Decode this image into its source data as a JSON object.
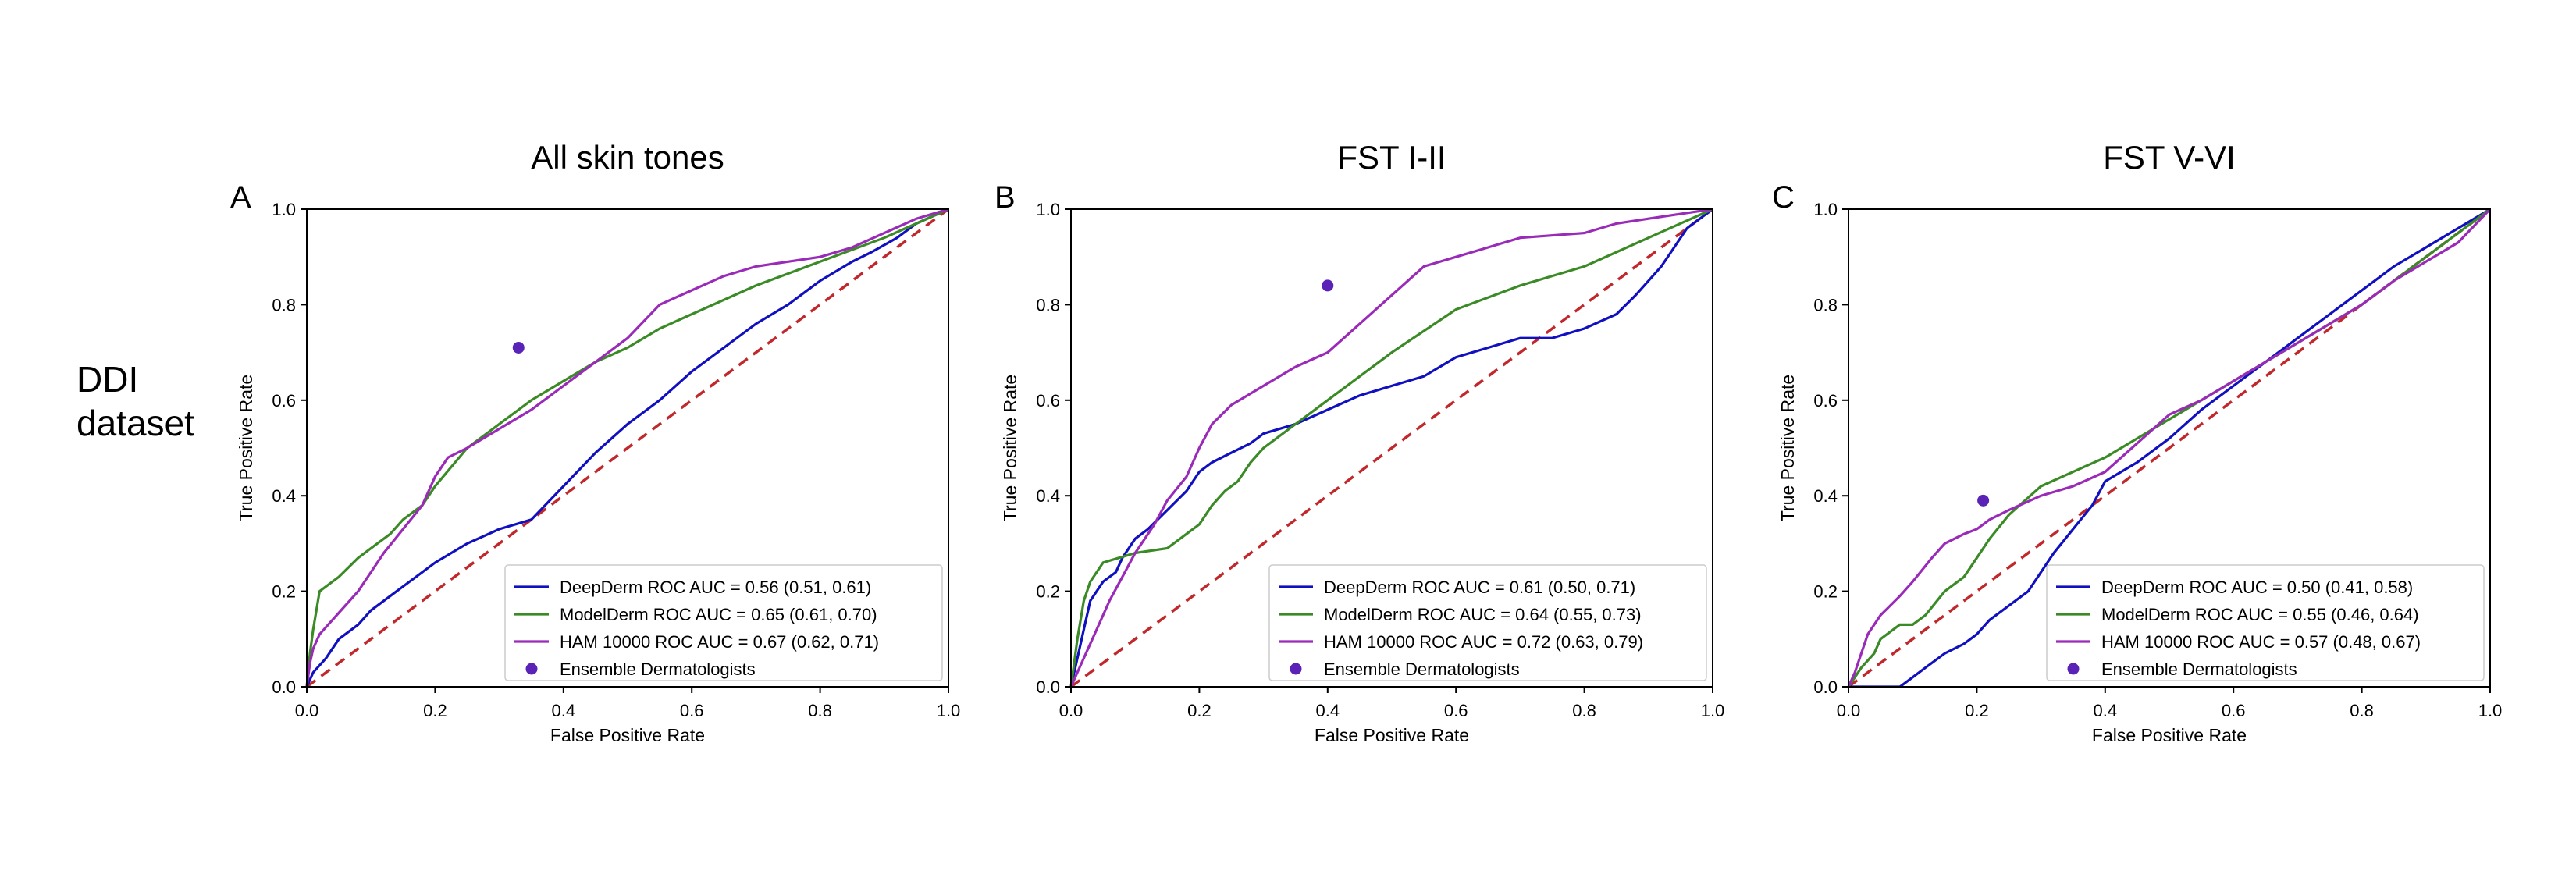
{
  "row_label_lines": [
    "DDI",
    "dataset"
  ],
  "colors": {
    "deepderm": "#1010c0",
    "modelderm": "#3a8a26",
    "ham": "#9a2ab8",
    "ensemble": "#5a22b6",
    "diagonal": "#c0282c"
  },
  "chart_data": [
    {
      "type": "line",
      "panel_letter": "A",
      "title": "All skin tones",
      "xlabel": "False Positive Rate",
      "ylabel": "True Positive Rate",
      "xlim": [
        0,
        1
      ],
      "ylim": [
        0,
        1
      ],
      "xticks": [
        "0.0",
        "0.2",
        "0.4",
        "0.6",
        "0.8",
        "1.0"
      ],
      "yticks": [
        "0.0",
        "0.2",
        "0.4",
        "0.6",
        "0.8",
        "1.0"
      ],
      "legend_position": "lower-right",
      "diagonal": true,
      "series": [
        {
          "name": "DeepDerm ROC AUC = 0.56 (0.51, 0.61)",
          "color_key": "deepderm",
          "x": [
            0,
            0.01,
            0.03,
            0.05,
            0.08,
            0.1,
            0.13,
            0.15,
            0.18,
            0.2,
            0.25,
            0.3,
            0.35,
            0.4,
            0.45,
            0.5,
            0.55,
            0.6,
            0.65,
            0.7,
            0.75,
            0.8,
            0.85,
            0.88,
            0.92,
            0.95,
            1.0
          ],
          "y": [
            0,
            0.03,
            0.06,
            0.1,
            0.13,
            0.16,
            0.19,
            0.21,
            0.24,
            0.26,
            0.3,
            0.33,
            0.35,
            0.42,
            0.49,
            0.55,
            0.6,
            0.66,
            0.71,
            0.76,
            0.8,
            0.85,
            0.89,
            0.91,
            0.94,
            0.97,
            1.0
          ]
        },
        {
          "name": "ModelDerm ROC AUC = 0.65 (0.61, 0.70)",
          "color_key": "modelderm",
          "x": [
            0,
            0.005,
            0.01,
            0.02,
            0.05,
            0.08,
            0.1,
            0.13,
            0.15,
            0.18,
            0.2,
            0.25,
            0.3,
            0.35,
            0.4,
            0.45,
            0.5,
            0.55,
            0.6,
            0.7,
            0.8,
            0.9,
            1.0
          ],
          "y": [
            0,
            0.07,
            0.12,
            0.2,
            0.23,
            0.27,
            0.29,
            0.32,
            0.35,
            0.38,
            0.42,
            0.5,
            0.55,
            0.6,
            0.64,
            0.68,
            0.71,
            0.75,
            0.78,
            0.84,
            0.89,
            0.94,
            1.0
          ]
        },
        {
          "name": "HAM 10000 ROC AUC = 0.67 (0.62, 0.71)",
          "color_key": "ham",
          "x": [
            0,
            0.005,
            0.01,
            0.02,
            0.04,
            0.06,
            0.08,
            0.1,
            0.12,
            0.15,
            0.18,
            0.2,
            0.22,
            0.25,
            0.3,
            0.35,
            0.4,
            0.45,
            0.5,
            0.55,
            0.6,
            0.65,
            0.7,
            0.75,
            0.8,
            0.85,
            0.9,
            0.95,
            1.0
          ],
          "y": [
            0,
            0.05,
            0.08,
            0.11,
            0.14,
            0.17,
            0.2,
            0.24,
            0.28,
            0.33,
            0.38,
            0.44,
            0.48,
            0.5,
            0.54,
            0.58,
            0.63,
            0.68,
            0.73,
            0.8,
            0.83,
            0.86,
            0.88,
            0.89,
            0.9,
            0.92,
            0.95,
            0.98,
            1.0
          ]
        }
      ],
      "ensemble": {
        "name": "Ensemble Dermatologists",
        "x": 0.33,
        "y": 0.71
      }
    },
    {
      "type": "line",
      "panel_letter": "B",
      "title": "FST I-II",
      "xlabel": "False Positive Rate",
      "ylabel": "True Positive Rate",
      "xlim": [
        0,
        1
      ],
      "ylim": [
        0,
        1
      ],
      "xticks": [
        "0.0",
        "0.2",
        "0.4",
        "0.6",
        "0.8",
        "1.0"
      ],
      "yticks": [
        "0.0",
        "0.2",
        "0.4",
        "0.6",
        "0.8",
        "1.0"
      ],
      "legend_position": "lower-right",
      "diagonal": true,
      "series": [
        {
          "name": "DeepDerm ROC AUC = 0.61 (0.50, 0.71)",
          "color_key": "deepderm",
          "x": [
            0,
            0.01,
            0.02,
            0.03,
            0.05,
            0.07,
            0.08,
            0.1,
            0.12,
            0.15,
            0.18,
            0.2,
            0.22,
            0.25,
            0.28,
            0.3,
            0.35,
            0.4,
            0.45,
            0.5,
            0.55,
            0.6,
            0.65,
            0.7,
            0.75,
            0.8,
            0.85,
            0.88,
            0.9,
            0.92,
            0.94,
            0.96,
            1.0
          ],
          "y": [
            0,
            0.06,
            0.12,
            0.18,
            0.22,
            0.24,
            0.27,
            0.31,
            0.33,
            0.37,
            0.41,
            0.45,
            0.47,
            0.49,
            0.51,
            0.53,
            0.55,
            0.58,
            0.61,
            0.63,
            0.65,
            0.69,
            0.71,
            0.73,
            0.73,
            0.75,
            0.78,
            0.82,
            0.85,
            0.88,
            0.92,
            0.96,
            1.0
          ]
        },
        {
          "name": "ModelDerm ROC AUC = 0.64 (0.55, 0.73)",
          "color_key": "modelderm",
          "x": [
            0,
            0.01,
            0.02,
            0.03,
            0.05,
            0.1,
            0.15,
            0.2,
            0.22,
            0.24,
            0.26,
            0.28,
            0.3,
            0.35,
            0.4,
            0.5,
            0.6,
            0.7,
            0.8,
            0.9,
            1.0
          ],
          "y": [
            0,
            0.1,
            0.18,
            0.22,
            0.26,
            0.28,
            0.29,
            0.34,
            0.38,
            0.41,
            0.43,
            0.47,
            0.5,
            0.55,
            0.6,
            0.7,
            0.79,
            0.84,
            0.88,
            0.94,
            1.0
          ]
        },
        {
          "name": "HAM 10000 ROC AUC = 0.72 (0.63, 0.79)",
          "color_key": "ham",
          "x": [
            0,
            0.01,
            0.02,
            0.04,
            0.06,
            0.08,
            0.1,
            0.13,
            0.15,
            0.18,
            0.2,
            0.22,
            0.25,
            0.3,
            0.35,
            0.4,
            0.45,
            0.5,
            0.55,
            0.6,
            0.65,
            0.7,
            0.8,
            0.85,
            0.9,
            0.95,
            1.0
          ],
          "y": [
            0,
            0.03,
            0.06,
            0.12,
            0.18,
            0.23,
            0.28,
            0.34,
            0.39,
            0.44,
            0.5,
            0.55,
            0.59,
            0.63,
            0.67,
            0.7,
            0.76,
            0.82,
            0.88,
            0.9,
            0.92,
            0.94,
            0.95,
            0.97,
            0.98,
            0.99,
            1.0
          ]
        }
      ],
      "ensemble": {
        "name": "Ensemble Dermatologists",
        "x": 0.4,
        "y": 0.84
      }
    },
    {
      "type": "line",
      "panel_letter": "C",
      "title": "FST V-VI",
      "xlabel": "False Positive Rate",
      "ylabel": "True Positive Rate",
      "xlim": [
        0,
        1
      ],
      "ylim": [
        0,
        1
      ],
      "xticks": [
        "0.0",
        "0.2",
        "0.4",
        "0.6",
        "0.8",
        "1.0"
      ],
      "yticks": [
        "0.0",
        "0.2",
        "0.4",
        "0.6",
        "0.8",
        "1.0"
      ],
      "legend_position": "lower-right",
      "diagonal": true,
      "series": [
        {
          "name": "DeepDerm ROC AUC = 0.50 (0.41, 0.58)",
          "color_key": "deepderm",
          "x": [
            0,
            0.05,
            0.08,
            0.1,
            0.12,
            0.15,
            0.18,
            0.2,
            0.22,
            0.25,
            0.28,
            0.3,
            0.32,
            0.35,
            0.38,
            0.4,
            0.45,
            0.5,
            0.55,
            0.6,
            0.65,
            0.7,
            0.75,
            0.8,
            0.85,
            0.9,
            0.95,
            1.0
          ],
          "y": [
            0,
            0,
            0,
            0.02,
            0.04,
            0.07,
            0.09,
            0.11,
            0.14,
            0.17,
            0.2,
            0.24,
            0.28,
            0.33,
            0.38,
            0.43,
            0.47,
            0.52,
            0.58,
            0.63,
            0.68,
            0.73,
            0.78,
            0.83,
            0.88,
            0.92,
            0.96,
            1.0
          ]
        },
        {
          "name": "ModelDerm ROC AUC = 0.55 (0.46, 0.64)",
          "color_key": "modelderm",
          "x": [
            0,
            0.01,
            0.02,
            0.04,
            0.05,
            0.08,
            0.1,
            0.12,
            0.15,
            0.18,
            0.2,
            0.22,
            0.25,
            0.3,
            0.35,
            0.4,
            0.45,
            0.5,
            0.55,
            0.6,
            0.65,
            0.7,
            0.75,
            0.8,
            0.85,
            0.9,
            0.95,
            1.0
          ],
          "y": [
            0,
            0.02,
            0.04,
            0.07,
            0.1,
            0.13,
            0.13,
            0.15,
            0.2,
            0.23,
            0.27,
            0.31,
            0.36,
            0.42,
            0.45,
            0.48,
            0.52,
            0.56,
            0.6,
            0.64,
            0.68,
            0.72,
            0.76,
            0.8,
            0.85,
            0.9,
            0.95,
            1.0
          ]
        },
        {
          "name": "HAM 10000 ROC AUC = 0.57 (0.48, 0.67)",
          "color_key": "ham",
          "x": [
            0,
            0.01,
            0.02,
            0.03,
            0.05,
            0.08,
            0.1,
            0.13,
            0.15,
            0.18,
            0.2,
            0.22,
            0.25,
            0.3,
            0.35,
            0.4,
            0.45,
            0.5,
            0.55,
            0.6,
            0.65,
            0.7,
            0.75,
            0.8,
            0.85,
            0.9,
            0.95,
            1.0
          ],
          "y": [
            0,
            0.03,
            0.07,
            0.11,
            0.15,
            0.19,
            0.22,
            0.27,
            0.3,
            0.32,
            0.33,
            0.35,
            0.37,
            0.4,
            0.42,
            0.45,
            0.51,
            0.57,
            0.6,
            0.64,
            0.68,
            0.72,
            0.76,
            0.8,
            0.85,
            0.89,
            0.93,
            1.0
          ]
        }
      ],
      "ensemble": {
        "name": "Ensemble Dermatologists",
        "x": 0.21,
        "y": 0.39
      }
    }
  ]
}
